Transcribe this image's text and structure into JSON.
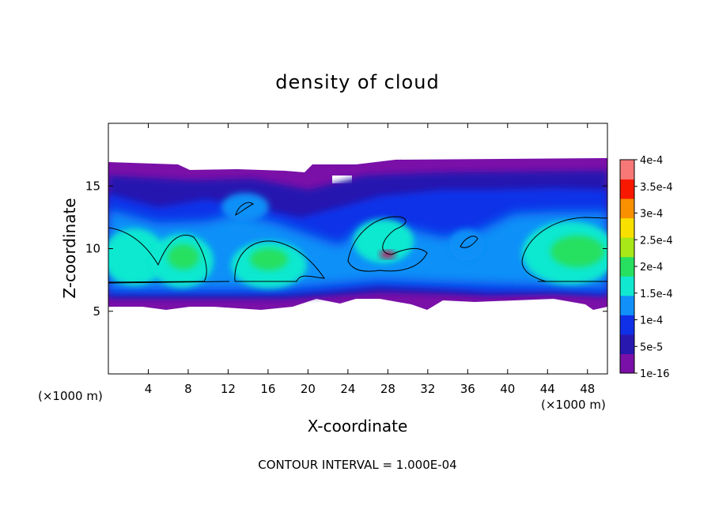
{
  "chart_data": {
    "type": "heatmap",
    "title": "density of cloud",
    "xlabel": "X-coordinate",
    "ylabel": "Z-coordinate",
    "x_unit_left": "(×1000 m)",
    "x_unit_right": "(×1000 m)",
    "footer": "CONTOUR INTERVAL = 1.000E-04",
    "xlim": [
      0,
      50
    ],
    "ylim": [
      0,
      20
    ],
    "x_ticks": [
      4,
      8,
      12,
      16,
      20,
      24,
      28,
      32,
      36,
      40,
      44,
      48
    ],
    "y_ticks": [
      5,
      10,
      15
    ],
    "colorbar": {
      "range": [
        1e-16,
        0.0004
      ],
      "tick_labels": [
        "1e-16",
        "5e-5",
        "1e-4",
        "1.5e-4",
        "2e-4",
        "2.5e-4",
        "3e-4",
        "3.5e-4",
        "4e-4"
      ],
      "colors": [
        "#7a10a8",
        "#2818b0",
        "#1030e8",
        "#1090f8",
        "#10e8d0",
        "#28e060",
        "#a8e818",
        "#f8e000",
        "#f89000",
        "#f81800",
        "#f87878"
      ]
    },
    "cloud_layer": {
      "z_bottom": 5.2,
      "z_top": 17.0
    },
    "cells": [
      {
        "x": 3,
        "z": 10,
        "value": 0.00015
      },
      {
        "x": 7.5,
        "z": 9.5,
        "value": 0.00017
      },
      {
        "x": 16,
        "z": 9.3,
        "value": 0.00016
      },
      {
        "x": 26.5,
        "z": 10.5,
        "value": 0.00013
      },
      {
        "x": 46,
        "z": 10,
        "value": 0.00016
      }
    ]
  }
}
